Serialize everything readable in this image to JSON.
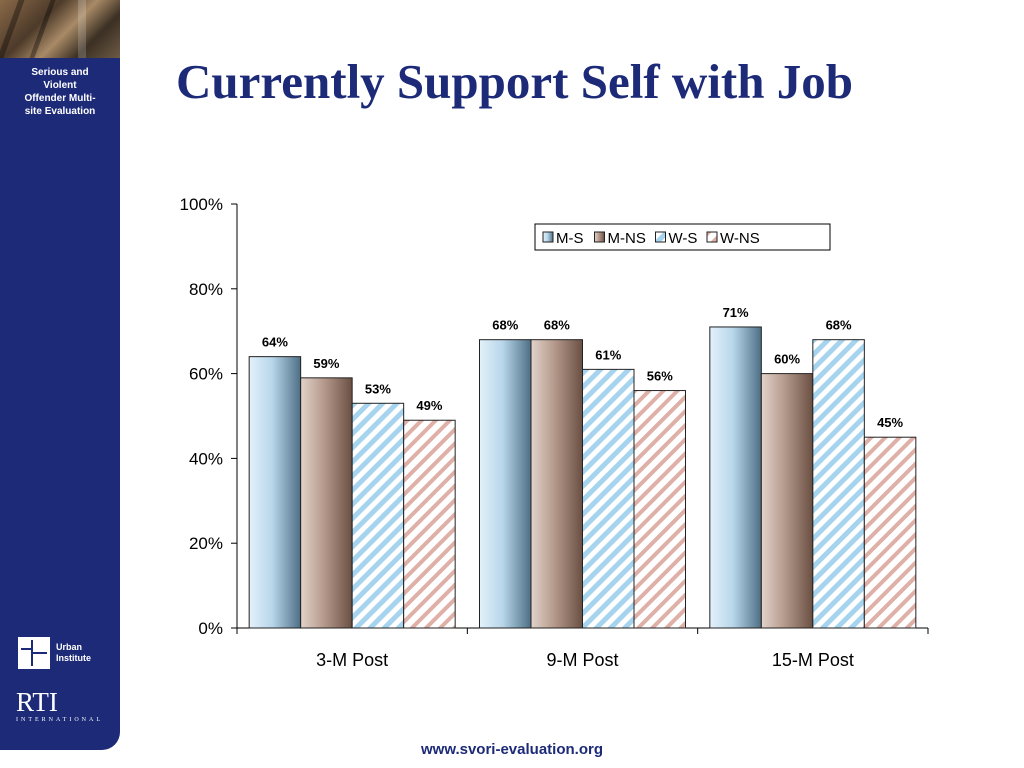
{
  "slide": {
    "title": "Currently Support Self with Job",
    "footer_url": "www.svori-evaluation.org"
  },
  "sidebar": {
    "title": "Serious and\nViolent\nOffender Multi-\nsite Evaluation",
    "urban_logo_text": "Urban\nInstitute",
    "rti_logo_text": "RTI",
    "rti_logo_subtext": "INTERNATIONAL"
  },
  "colors": {
    "sidebar": "#1c2a78",
    "title": "#1c2a78",
    "m_s": "#bcd9ee",
    "m_ns": "#a78878",
    "w_s_stripe": "#a6d4ef",
    "w_ns_stripe": "#deb0a8"
  },
  "chart_data": {
    "type": "bar",
    "categories": [
      "3-M Post",
      "9-M Post",
      "15-M Post"
    ],
    "series": [
      {
        "name": "M-S",
        "values": [
          64,
          68,
          71
        ],
        "labels": [
          "64%",
          "68%",
          "71%"
        ]
      },
      {
        "name": "M-NS",
        "values": [
          59,
          68,
          60
        ],
        "labels": [
          "59%",
          "68%",
          "60%"
        ]
      },
      {
        "name": "W-S",
        "values": [
          53,
          61,
          68
        ],
        "labels": [
          "53%",
          "61%",
          "68%"
        ]
      },
      {
        "name": "W-NS",
        "values": [
          49,
          56,
          45
        ],
        "labels": [
          "49%",
          "56%",
          "45%"
        ]
      }
    ],
    "y_ticks": [
      "0%",
      "20%",
      "40%",
      "60%",
      "80%",
      "100%"
    ],
    "ylim": [
      0,
      100
    ],
    "legend_position": "top-right",
    "grid": false
  }
}
